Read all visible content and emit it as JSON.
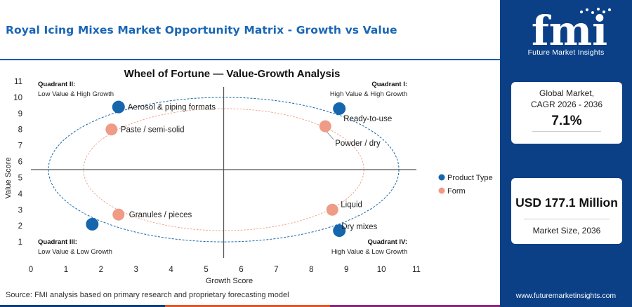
{
  "page": {
    "title": "Royal Icing Mixes Market Opportunity Matrix - Growth vs Value",
    "source": "Source: FMI analysis based on primary research and proprietary forecasting model"
  },
  "side_panel": {
    "logo_text": "fmi",
    "logo_sub": "Future Market Insights",
    "cagr_label_line1": "Global Market,",
    "cagr_label_line2": "CAGR 2026 - 2036",
    "cagr_value": "7.1%",
    "market_value": "USD 177.1 Million",
    "market_label": "Market Size, 2036",
    "website": "www.futuremarketinsights.com"
  },
  "chart_data": {
    "type": "scatter",
    "title": "Wheel of Fortune — Value-Growth Analysis",
    "xlabel": "Growth Score",
    "ylabel": "Value Score",
    "xlim": [
      0,
      11
    ],
    "ylim": [
      0,
      11
    ],
    "xticks": [
      0,
      1,
      2,
      3,
      4,
      5,
      6,
      7,
      8,
      9,
      10,
      11
    ],
    "yticks": [
      1,
      2,
      3,
      4,
      5,
      6,
      7,
      8,
      9,
      10,
      11
    ],
    "grid": false,
    "divider": {
      "x": 5.5,
      "y": 5.5
    },
    "legend_position": "right",
    "colors": {
      "Product Type": "#1666ad",
      "Form": "#ef9b85",
      "divider": "#555555"
    },
    "quadrants": [
      {
        "name": "Quadrant II:",
        "desc": "Low Value & High Growth",
        "corner": "top-left"
      },
      {
        "name": "Quadrant I:",
        "desc": "High Value & High Growth",
        "corner": "top-right"
      },
      {
        "name": "Quadrant III:",
        "desc": "Low Value & Low Growth",
        "corner": "bottom-left"
      },
      {
        "name": "Quadrant IV:",
        "desc": "High Value & Low Growth",
        "corner": "bottom-right"
      }
    ],
    "rings": [
      {
        "series": "Product Type",
        "cx": 5.5,
        "cy": 5.5,
        "rx": 5.0,
        "ry": 4.5
      },
      {
        "series": "Form",
        "cx": 5.5,
        "cy": 5.5,
        "rx": 4.0,
        "ry": 3.8
      }
    ],
    "series": [
      {
        "name": "Product Type",
        "points": [
          {
            "label": "Aerosol & piping formats",
            "x": 2.5,
            "y": 9.4
          },
          {
            "label": "Ready-to-use",
            "x": 8.8,
            "y": 9.3
          },
          {
            "label": "Granules / pieces",
            "x": 1.75,
            "y": 2.1
          },
          {
            "label": "Dry mixes",
            "x": 8.8,
            "y": 1.7
          }
        ]
      },
      {
        "name": "Form",
        "points": [
          {
            "label": "Paste / semi-solid",
            "x": 2.3,
            "y": 8.0
          },
          {
            "label": "Powder / dry",
            "x": 8.4,
            "y": 8.2
          },
          {
            "label": "Granules / pieces",
            "x": 2.5,
            "y": 2.7
          },
          {
            "label": "Liquid",
            "x": 8.6,
            "y": 3.0
          }
        ]
      }
    ]
  }
}
